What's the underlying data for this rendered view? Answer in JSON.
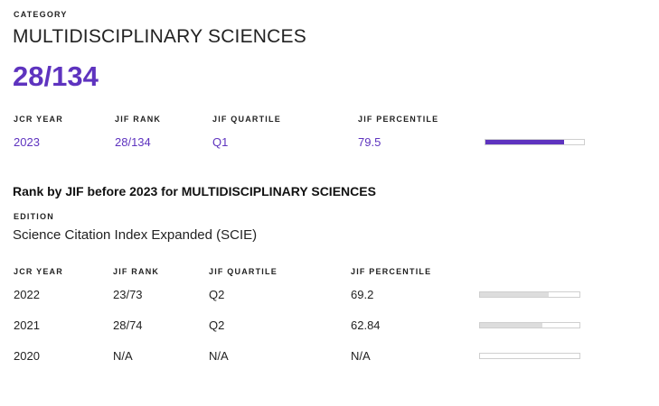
{
  "header": {
    "category_label": "CATEGORY",
    "category_name": "MULTIDISCIPLINARY SCIENCES",
    "rank": "28/134"
  },
  "current": {
    "col_year": "JCR YEAR",
    "col_rank": "JIF RANK",
    "col_quartile": "JIF QUARTILE",
    "col_percentile": "JIF PERCENTILE",
    "year": "2023",
    "rank": "28/134",
    "quartile": "Q1",
    "percentile": "79.5",
    "percentile_value": 79.5,
    "bar_color": "#5e33bf"
  },
  "history": {
    "title": "Rank by JIF before 2023 for MULTIDISCIPLINARY SCIENCES",
    "edition_label": "EDITION",
    "edition_value": "Science Citation Index Expanded (SCIE)",
    "col_year": "JCR YEAR",
    "col_rank": "JIF RANK",
    "col_quartile": "JIF QUARTILE",
    "col_percentile": "JIF PERCENTILE",
    "bar_color": "#dddddd",
    "rows": [
      {
        "year": "2022",
        "rank": "23/73",
        "quartile": "Q2",
        "percentile": "69.2",
        "percentile_value": 69.2
      },
      {
        "year": "2021",
        "rank": "28/74",
        "quartile": "Q2",
        "percentile": "62.84",
        "percentile_value": 62.84
      },
      {
        "year": "2020",
        "rank": "N/A",
        "quartile": "N/A",
        "percentile": "N/A",
        "percentile_value": 0
      }
    ]
  }
}
